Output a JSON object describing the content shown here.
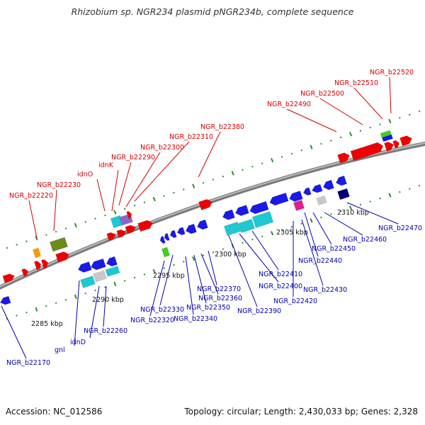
{
  "title": "Rhizobium sp. NGR234 plasmid pNGR234b, complete sequence",
  "footer": {
    "accession": "Accession: NC_012586",
    "stats": "Topology: circular; Length: 2,430,033 bp; Genes: 2,328"
  },
  "colors": {
    "forward_label": "#d40000",
    "reverse_label": "#0000b0",
    "backbone": "#888888",
    "tick": "#2e8b2e",
    "red": "#ee0000",
    "blue": "#1a1ae6",
    "cyan": "#1ec8d2",
    "green": "#44cc22",
    "olive": "#6e8a1e",
    "orange": "#ff9900",
    "purple": "#8866cc",
    "magenta": "#e01e8c",
    "gray": "#c8c8c8",
    "navy": "#000070"
  },
  "scale_labels": [
    "2285 kbp",
    "2290 kbp",
    "2295 kbp",
    "2300 kbp",
    "2305 kbp",
    "2310 kbp"
  ],
  "forward_genes": [
    "NGR_b22220",
    "NGR_b22230",
    "idnO",
    "idnK",
    "NGR_b22290",
    "NGR_b22300",
    "NGR_b22310",
    "NGR_b22380",
    "NGR_b22490",
    "NGR_b22500",
    "NGR_b22510",
    "NGR_b22520"
  ],
  "reverse_genes": [
    "NGR_b22170",
    "gnl",
    "idnD",
    "NGR_b22260",
    "NGR_b22320",
    "NGR_b22330",
    "NGR_b22340",
    "NGR_b22350",
    "NGR_b22360",
    "NGR_b22370",
    "NGR_b22390",
    "NGR_b22400",
    "NGR_b22410",
    "NGR_b22420",
    "NGR_b22430",
    "NGR_b22440",
    "NGR_b22450",
    "NGR_b22460",
    "NGR_b22470"
  ]
}
